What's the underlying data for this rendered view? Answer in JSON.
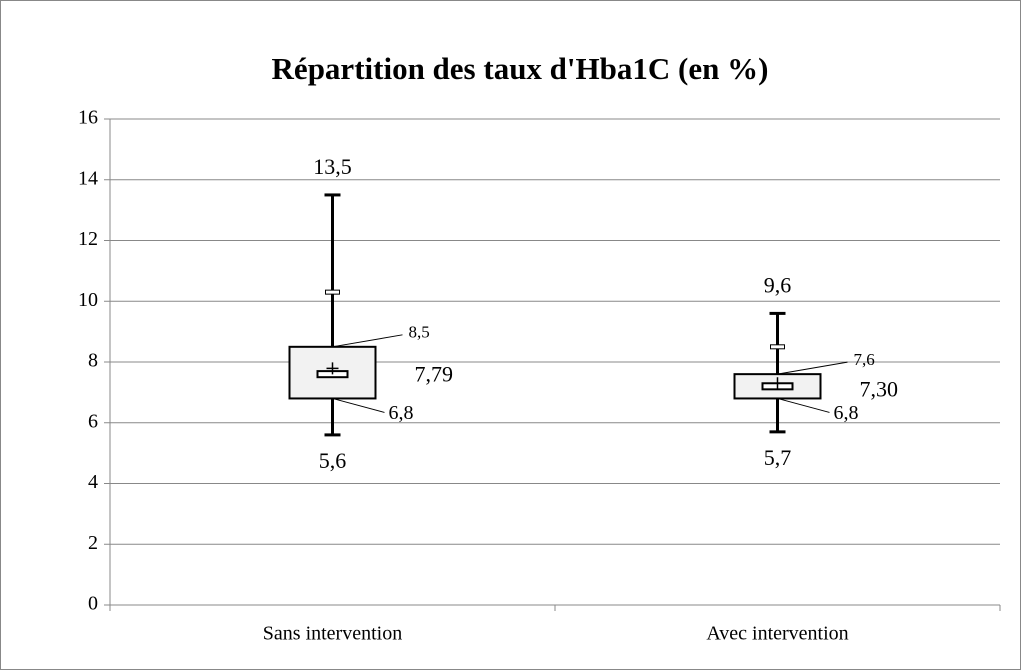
{
  "chart_data": {
    "type": "box",
    "title": "Répartition des taux d'Hba1C (en %)",
    "categories": [
      "Sans intervention",
      "Avec intervention"
    ],
    "min": {
      "values": [
        5.6,
        5.7
      ],
      "value_labels": [
        "5,6",
        "5,7"
      ]
    },
    "q1": {
      "values": [
        6.8,
        6.8
      ],
      "value_labels": [
        "6,8",
        "6,8"
      ]
    },
    "median_low": {
      "values": [
        7.5,
        7.1
      ]
    },
    "median_high": {
      "values": [
        7.7,
        7.3
      ]
    },
    "q3": {
      "values": [
        8.5,
        7.6
      ],
      "value_labels": [
        "8,5",
        "7,6"
      ]
    },
    "max": {
      "values": [
        13.5,
        9.6
      ],
      "value_labels": [
        "13,5",
        "9,6"
      ]
    },
    "mean": {
      "values": [
        7.79,
        7.3
      ],
      "value_labels": [
        "7,79",
        "7,30"
      ]
    },
    "outliers": {
      "values": [
        10.3,
        8.5
      ]
    },
    "box_color": "#f2f2f2",
    "ylim": [
      0,
      16
    ],
    "yticks": [
      0,
      2,
      4,
      6,
      8,
      10,
      12,
      14,
      16
    ],
    "grid": true
  }
}
